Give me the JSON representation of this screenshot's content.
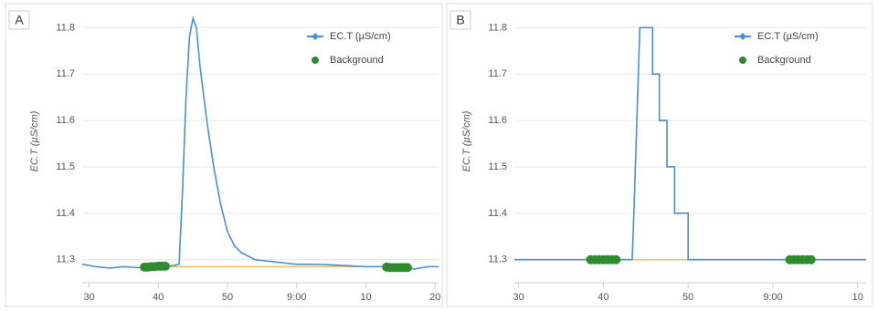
{
  "chart_data": [
    {
      "type": "line",
      "panel_label": "A",
      "y_label": "EC.T (µS/cm)",
      "xlim": [
        29,
        80.5
      ],
      "xticks": [
        30,
        40,
        50,
        {
          "value": 60,
          "label": "9:00"
        },
        {
          "value": 70,
          "label": "10"
        },
        {
          "value": 80,
          "label": "20"
        }
      ],
      "ylim": [
        11.27,
        11.84
      ],
      "yticks": [
        11.3,
        11.4,
        11.5,
        11.6,
        11.7,
        11.8
      ],
      "baseline": {
        "color": "#f0c060",
        "x": [
          39,
          75
        ],
        "values": [
          11.285,
          11.285
        ]
      },
      "series": [
        {
          "name": "EC.T (µS/cm)",
          "color": "#4a90d0",
          "marker": "diamond",
          "x": [
            29,
            31,
            33,
            35,
            37,
            39,
            41,
            42,
            43,
            43.5,
            44,
            44.5,
            45,
            45.5,
            46,
            47,
            48,
            49,
            50,
            51,
            52,
            54,
            57,
            60,
            63,
            66,
            70,
            73,
            75,
            77,
            79,
            80.5
          ],
          "values": [
            11.29,
            11.285,
            11.282,
            11.285,
            11.283,
            11.284,
            11.286,
            11.287,
            11.29,
            11.45,
            11.65,
            11.78,
            11.82,
            11.8,
            11.72,
            11.6,
            11.5,
            11.42,
            11.36,
            11.33,
            11.315,
            11.3,
            11.295,
            11.29,
            11.29,
            11.288,
            11.285,
            11.285,
            11.283,
            11.28,
            11.285,
            11.285
          ]
        },
        {
          "name": "Background",
          "color": "#2e8b2e",
          "marker": "dot",
          "points": true,
          "x": [
            38,
            38.5,
            39,
            39.5,
            40,
            40.5,
            41,
            73,
            73.5,
            74,
            74.5,
            75,
            75.5,
            76
          ],
          "values": [
            11.284,
            11.284,
            11.285,
            11.285,
            11.286,
            11.286,
            11.286,
            11.284,
            11.283,
            11.283,
            11.283,
            11.283,
            11.283,
            11.283
          ]
        }
      ]
    },
    {
      "type": "line",
      "panel_label": "B",
      "y_label": "EC.T (µS/cm)",
      "xlim": [
        29.5,
        71
      ],
      "xticks": [
        30,
        40,
        50,
        {
          "value": 60,
          "label": "9:00"
        },
        {
          "value": 70,
          "label": "10"
        }
      ],
      "ylim": [
        11.27,
        11.84
      ],
      "yticks": [
        11.3,
        11.4,
        11.5,
        11.6,
        11.7,
        11.8
      ],
      "baseline": {
        "color": "#f0c060",
        "x": [
          40,
          64
        ],
        "values": [
          11.3,
          11.3
        ]
      },
      "series": [
        {
          "name": "EC.T (µS/cm)",
          "color": "#4a90d0",
          "marker": "diamond",
          "x": [
            29.5,
            43.4,
            43.6,
            44.3,
            44.3,
            45.8,
            45.8,
            46.6,
            46.6,
            47.5,
            47.5,
            48.4,
            48.4,
            50,
            50,
            71
          ],
          "values": [
            11.3,
            11.3,
            11.4,
            11.8,
            11.8,
            11.8,
            11.7,
            11.7,
            11.6,
            11.6,
            11.5,
            11.5,
            11.4,
            11.4,
            11.3,
            11.3
          ]
        },
        {
          "name": "Background",
          "color": "#2e8b2e",
          "marker": "dot",
          "points": true,
          "x": [
            38.5,
            39,
            39.5,
            40,
            40.5,
            41,
            41.5,
            62,
            62.5,
            63,
            63.5,
            64,
            64.5
          ],
          "values": [
            11.3,
            11.3,
            11.3,
            11.3,
            11.3,
            11.3,
            11.3,
            11.3,
            11.3,
            11.3,
            11.3,
            11.3,
            11.3
          ]
        }
      ]
    }
  ]
}
